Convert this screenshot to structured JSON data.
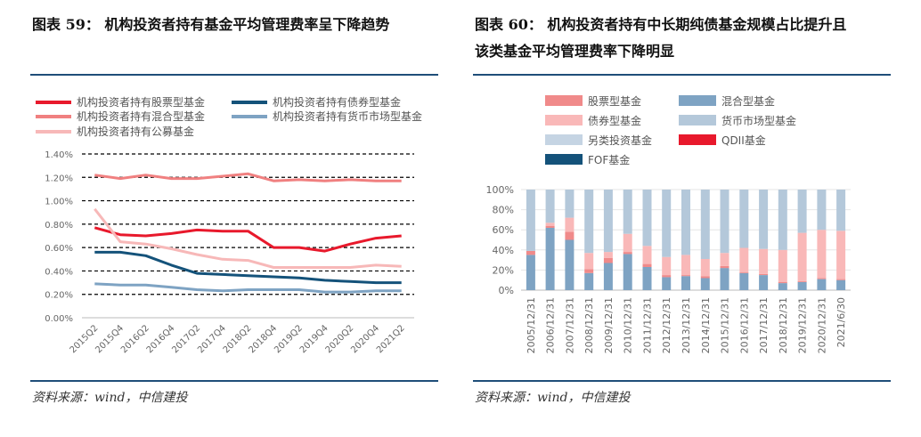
{
  "left_title": "图表 59：  机构投资者持有基金平均管理费率呈下降趋势",
  "right_title_line1": "图表 60：  机构投资者持有中长期纯债基金规模占比提升且",
  "right_title_line2": "该类基金平均管理费率下降明显",
  "left_source": "资料来源：wind，中信建投",
  "right_source": "资料来源：wind，中信建投",
  "colors": {
    "rule": "#1f4e79"
  },
  "chart_data": [
    {
      "type": "line",
      "title": "",
      "x": [
        "2015Q2",
        "2015Q4",
        "2016Q2",
        "2016Q4",
        "2017Q2",
        "2017Q4",
        "2018Q2",
        "2018Q4",
        "2019Q2",
        "2019Q4",
        "2020Q2",
        "2020Q4",
        "2021Q2"
      ],
      "ylim": [
        0,
        0.014
      ],
      "yticks": [
        "0.00%",
        "0.20%",
        "0.40%",
        "0.60%",
        "0.80%",
        "1.00%",
        "1.20%",
        "1.40%"
      ],
      "series": [
        {
          "name": "机构投资者持有股票型基金",
          "color": "#e8192c",
          "values": [
            0.0077,
            0.0071,
            0.007,
            0.0072,
            0.0075,
            0.0074,
            0.0074,
            0.006,
            0.006,
            0.0057,
            0.0063,
            0.0068,
            0.007
          ]
        },
        {
          "name": "机构投资者持有债券型基金",
          "color": "#14527a",
          "values": [
            0.0056,
            0.0056,
            0.0053,
            0.0045,
            0.0038,
            0.0037,
            0.0036,
            0.0035,
            0.0034,
            0.0032,
            0.0031,
            0.003,
            0.003
          ]
        },
        {
          "name": "机构投资者持有混合型基金",
          "color": "#f08080",
          "values": [
            0.0122,
            0.0119,
            0.0122,
            0.0119,
            0.0119,
            0.0121,
            0.0123,
            0.0117,
            0.0118,
            0.0117,
            0.0118,
            0.0117,
            0.0117
          ]
        },
        {
          "name": "机构投资者持有货币市场型基金",
          "color": "#7ea3c3",
          "values": [
            0.0029,
            0.0028,
            0.0028,
            0.0026,
            0.0024,
            0.0023,
            0.0024,
            0.0024,
            0.0024,
            0.0022,
            0.0022,
            0.0023,
            0.0023
          ]
        },
        {
          "name": "机构投资者持有公募基金",
          "color": "#f7b8b8",
          "values": [
            0.0093,
            0.0065,
            0.0063,
            0.0059,
            0.0054,
            0.005,
            0.0049,
            0.0043,
            0.0043,
            0.0043,
            0.0043,
            0.0045,
            0.0044
          ]
        }
      ]
    },
    {
      "type": "bar",
      "stacked": true,
      "title": "",
      "categories": [
        "2005/12/31",
        "2006/12/31",
        "2007/12/31",
        "2008/12/31",
        "2009/12/31",
        "2010/12/31",
        "2011/12/31",
        "2012/12/31",
        "2013/12/31",
        "2014/12/31",
        "2015/12/31",
        "2016/12/31",
        "2017/12/31",
        "2018/12/31",
        "2019/12/31",
        "2020/12/31",
        "2021/6/30"
      ],
      "ylim": [
        0,
        100
      ],
      "yticks": [
        "0%",
        "20%",
        "40%",
        "60%",
        "80%",
        "100%"
      ],
      "series": [
        {
          "name": "混合型基金",
          "color": "#7ea3c3",
          "values": [
            35,
            62,
            50,
            17,
            27,
            36,
            23,
            13,
            14,
            12,
            22,
            17,
            15,
            7,
            8,
            11,
            10
          ]
        },
        {
          "name": "股票型基金",
          "color": "#f08a8a",
          "values": [
            4,
            2,
            8,
            4,
            5,
            2,
            3,
            2,
            1,
            2,
            2,
            1,
            1,
            1,
            1,
            1,
            1
          ]
        },
        {
          "name": "债券型基金",
          "color": "#f9b8b8",
          "values": [
            0,
            3,
            14,
            16,
            6,
            18,
            18,
            18,
            20,
            17,
            13,
            24,
            25,
            32,
            48,
            48,
            48
          ]
        },
        {
          "name": "QDII基金",
          "color": "#e8192c",
          "values": [
            0,
            0,
            0,
            0,
            0,
            0,
            0,
            0,
            0,
            0,
            0,
            0,
            0,
            0,
            0,
            0,
            0
          ]
        },
        {
          "name": "FOF基金",
          "color": "#14527a",
          "values": [
            0,
            0,
            0,
            0,
            0,
            0,
            0,
            0,
            0,
            0,
            0,
            0,
            0,
            0,
            0,
            0,
            0
          ]
        },
        {
          "name": "货币市场型基金",
          "color": "#b4c8da",
          "values": [
            61,
            33,
            28,
            63,
            62,
            44,
            56,
            67,
            65,
            69,
            63,
            58,
            59,
            60,
            43,
            40,
            41
          ]
        },
        {
          "name": "另类投资基金",
          "color": "#c5d4e3",
          "values": [
            0,
            0,
            0,
            0,
            0,
            0,
            0,
            0,
            0,
            0,
            0,
            0,
            0,
            0,
            0,
            0,
            0
          ]
        }
      ],
      "legend_order": [
        {
          "name": "股票型基金",
          "color": "#f08a8a"
        },
        {
          "name": "混合型基金",
          "color": "#7ea3c3"
        },
        {
          "name": "债券型基金",
          "color": "#f9b8b8"
        },
        {
          "name": "货币市场型基金",
          "color": "#b4c8da"
        },
        {
          "name": "另类投资基金",
          "color": "#c5d4e3"
        },
        {
          "name": "QDII基金",
          "color": "#e8192c"
        },
        {
          "name": "FOF基金",
          "color": "#14527a"
        }
      ]
    }
  ]
}
